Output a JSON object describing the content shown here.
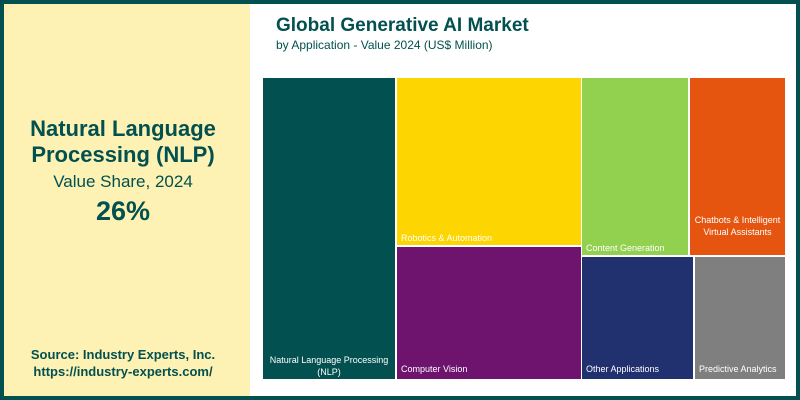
{
  "highlight": {
    "name_line1": "Natural Language",
    "name_line2": "Processing (NLP)",
    "metric": "Value Share, 2024",
    "value": "26%"
  },
  "source": {
    "line1": "Source: Industry Experts, Inc.",
    "line2": "https://industry-experts.com/"
  },
  "chart_data": {
    "type": "treemap",
    "title": "Global Generative AI Market",
    "subtitle": "by Application - Value 2024 (US$ Million)",
    "categories": [
      {
        "label": "Natural Language Processing (NLP)",
        "color": "#02504f",
        "share_percent": 26
      },
      {
        "label": "Robotics & Automation",
        "color": "#fdd500"
      },
      {
        "label": "Computer Vision",
        "color": "#6e146f"
      },
      {
        "label": "Content Generation",
        "color": "#92d050"
      },
      {
        "label": "Chatbots & Intelligent Virtual Assistants",
        "color": "#e55510"
      },
      {
        "label": "Other Applications",
        "color": "#21306e"
      },
      {
        "label": "Predictive Analytics",
        "color": "#7f7f7f"
      }
    ]
  }
}
